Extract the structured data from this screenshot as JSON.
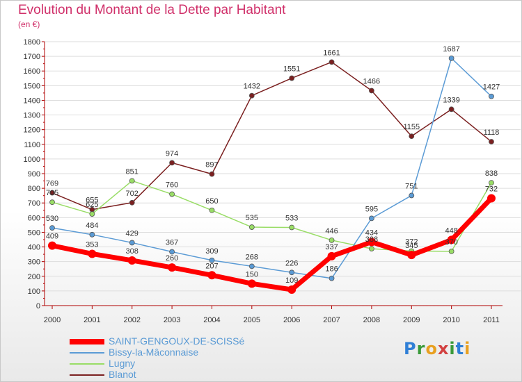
{
  "header": {
    "title": "Evolution du Montant de la Dette par Habitant",
    "subtitle": "(en €)"
  },
  "logo": {
    "text": "Proxiti",
    "colors": [
      "#2f7fd6",
      "#3a9a3a",
      "#e8a020",
      "#d24040",
      "#3a9a3a",
      "#2f7fd6",
      "#e8a020"
    ]
  },
  "colors": {
    "title": "#d0306a",
    "axis": "#b00000",
    "grid": "#dddddd"
  },
  "chart_data": {
    "type": "line",
    "title": "Evolution du Montant de la Dette par Habitant",
    "subtitle": "(en €)",
    "x": [
      "2000",
      "2001",
      "2002",
      "2003",
      "2004",
      "2005",
      "2006",
      "2007",
      "2008",
      "2009",
      "2010",
      "2011"
    ],
    "ylim": [
      0,
      1800
    ],
    "ytick_step": 100,
    "grid": "horizontal",
    "legend_position": "bottom-left",
    "series": [
      {
        "name": "SAINT-GENGOUX-DE-SCISSé",
        "color": "#ff0000",
        "values": [
          409,
          353,
          308,
          260,
          207,
          150,
          109,
          337,
          434,
          345,
          448,
          732
        ]
      },
      {
        "name": "Bissy-la-Mâconnaise",
        "color": "#5b9bd5",
        "values": [
          530,
          484,
          429,
          367,
          309,
          268,
          226,
          186,
          595,
          751,
          1687,
          1427
        ]
      },
      {
        "name": "Lugny",
        "color": "#99dd66",
        "values": [
          705,
          625,
          851,
          760,
          650,
          535,
          533,
          446,
          388,
          372,
          370,
          838
        ]
      },
      {
        "name": "Blanot",
        "color": "#7b2020",
        "values": [
          769,
          655,
          702,
          974,
          897,
          1432,
          1551,
          1661,
          1466,
          1155,
          1339,
          1118
        ]
      }
    ],
    "data_labels": [
      [
        "409",
        "353",
        "308",
        "260",
        "207",
        "150",
        "109",
        "337",
        "434",
        "345",
        "448",
        "732"
      ],
      [
        "530",
        "484",
        "429",
        "367",
        "309",
        "268",
        "226",
        "186",
        "595",
        "751",
        "1687",
        "1427"
      ],
      [
        "705",
        "625",
        "851",
        "760",
        "650",
        "535",
        "533",
        "446",
        "388",
        "372",
        "370",
        "838"
      ],
      [
        "769",
        "655",
        "702",
        "974",
        "897",
        "1432",
        "1551",
        "1661",
        "1466",
        "1155",
        "1339",
        "1118"
      ]
    ]
  }
}
